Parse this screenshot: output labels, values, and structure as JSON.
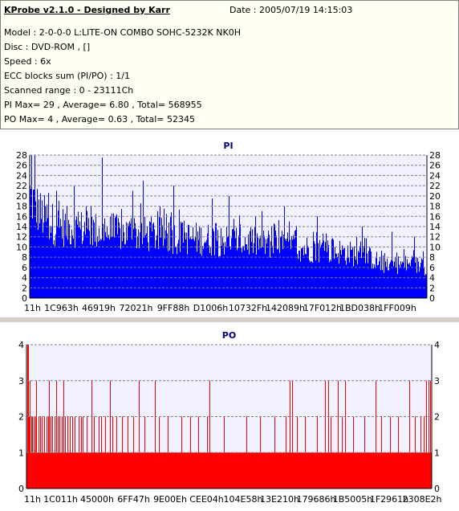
{
  "info": {
    "title": "KProbe v2.1.0 - Designed by Karr",
    "date": "Date : 2005/07/19 14:15:03",
    "model": "Model : 2-0-0-0 L:LITE-ON COMBO SOHC-5232K NK0H",
    "disc": "Disc : DVD-ROM ,  []",
    "speed": "Speed : 6x",
    "ecc": "ECC blocks sum (PI/PO) : 1/1",
    "scanned": "Scanned range : 0 - 23111Ch",
    "pi_stats": "PI Max= 29 , Average= 6.80 , Total= 568955",
    "po_stats": "PO Max= 4 , Average= 0.63 , Total= 52345"
  },
  "colors": {
    "pi": "#0000ff",
    "po": "#ff0000",
    "grid": "#808080"
  },
  "chart_data": [
    {
      "type": "bar",
      "title": "PI",
      "ylim": [
        0,
        28
      ],
      "yticks": [
        0,
        2,
        4,
        6,
        8,
        10,
        12,
        14,
        16,
        18,
        20,
        22,
        24,
        26,
        28
      ],
      "x_tick_labels": [
        "11h",
        "1C963h",
        "46919h",
        "72021h",
        "9FF88h",
        "D1006h",
        "10732Fh",
        "142089h",
        "17F012h",
        "1BD038h",
        "1FF009h"
      ],
      "x_range": [
        0,
        143645
      ],
      "max": 29,
      "average": 6.8,
      "profile": [
        [
          0,
          26
        ],
        [
          1500,
          24
        ],
        [
          4000,
          21
        ],
        [
          9000,
          18.5
        ],
        [
          18000,
          17.5
        ],
        [
          30000,
          16.5
        ],
        [
          45000,
          16
        ],
        [
          60000,
          15
        ],
        [
          75000,
          14.5
        ],
        [
          90000,
          13.5
        ],
        [
          100000,
          12.5
        ],
        [
          110000,
          12
        ],
        [
          118000,
          11
        ],
        [
          124000,
          10
        ],
        [
          127000,
          8.5
        ],
        [
          135000,
          8.5
        ],
        [
          143645,
          8
        ]
      ],
      "peaks": [
        [
          500,
          29
        ],
        [
          1800,
          28
        ],
        [
          26000,
          27.5
        ],
        [
          41000,
          23
        ],
        [
          16000,
          22
        ],
        [
          52000,
          22
        ],
        [
          9500,
          21
        ],
        [
          37000,
          21
        ],
        [
          72000,
          20
        ],
        [
          66000,
          19.5
        ],
        [
          92000,
          18
        ],
        [
          84000,
          17
        ],
        [
          104000,
          16
        ],
        [
          120000,
          14
        ],
        [
          131000,
          13
        ],
        [
          139000,
          12
        ]
      ]
    },
    {
      "type": "bar",
      "title": "PO",
      "ylim": [
        0,
        4
      ],
      "yticks": [
        0,
        1,
        2,
        3,
        4
      ],
      "x_tick_labels": [
        "11h",
        "1C011h",
        "45000h",
        "6FF47h",
        "9E00Eh",
        "CEE04h",
        "104E58h",
        "13E210h",
        "179686h",
        "1B5005h",
        "1F2961h",
        "2308E2h"
      ],
      "x_range": [
        0,
        143586
      ],
      "max": 4,
      "average": 0.63,
      "spikes_4": [
        300,
        700
      ],
      "spikes_3": [
        1200,
        3500,
        8000,
        10500,
        13000,
        23000,
        29500,
        40000,
        45500,
        65000,
        93500,
        94200,
        106000,
        107000,
        110500,
        113000,
        124000,
        136000,
        142000,
        142700,
        143300
      ],
      "spikes_2": [
        900,
        1600,
        2100,
        2500,
        3000,
        4200,
        4800,
        5400,
        6200,
        7000,
        7600,
        8500,
        9200,
        10000,
        11000,
        11800,
        12500,
        13600,
        14500,
        15500,
        16200,
        17000,
        18500,
        19300,
        20000,
        21500,
        24000,
        25500,
        26500,
        28000,
        30500,
        32000,
        34000,
        36000,
        38000,
        42000,
        47000,
        50000,
        55000,
        58000,
        61000,
        64000,
        70000,
        78000,
        83000,
        88000,
        92000,
        96000,
        99000,
        103000,
        108000,
        112000,
        116000,
        120000,
        126000,
        129000,
        132000,
        138000,
        140000,
        141000
      ]
    }
  ]
}
